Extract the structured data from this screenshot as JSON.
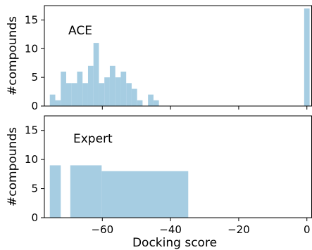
{
  "chart_data": [
    {
      "type": "bar",
      "panel_label": "ACE",
      "ylabel": "#compounds",
      "xlabel": "",
      "bin_width": 1.6,
      "xlim": [
        -77,
        1.5
      ],
      "ylim": [
        0,
        17.5
      ],
      "yticks": [
        0,
        5,
        10,
        15
      ],
      "xticks": [
        -60,
        -40,
        -20,
        0
      ],
      "bar_color": "#a6cde2",
      "bars": [
        {
          "x": -75.4,
          "y": 2
        },
        {
          "x": -73.8,
          "y": 1
        },
        {
          "x": -72.2,
          "y": 6
        },
        {
          "x": -70.6,
          "y": 4
        },
        {
          "x": -69.0,
          "y": 4
        },
        {
          "x": -67.4,
          "y": 6
        },
        {
          "x": -65.8,
          "y": 4
        },
        {
          "x": -64.2,
          "y": 7
        },
        {
          "x": -62.6,
          "y": 11
        },
        {
          "x": -61.0,
          "y": 4
        },
        {
          "x": -59.4,
          "y": 5
        },
        {
          "x": -57.8,
          "y": 7
        },
        {
          "x": -56.2,
          "y": 5
        },
        {
          "x": -54.6,
          "y": 6
        },
        {
          "x": -53.0,
          "y": 4
        },
        {
          "x": -51.4,
          "y": 3
        },
        {
          "x": -49.8,
          "y": 1
        },
        {
          "x": -46.6,
          "y": 2
        },
        {
          "x": -45.0,
          "y": 1
        },
        {
          "x": -0.8,
          "y": 17
        }
      ]
    },
    {
      "type": "bar",
      "panel_label": "Expert",
      "ylabel": "#compounds",
      "xlabel": "Docking score",
      "xlim": [
        -77,
        1.5
      ],
      "ylim": [
        0,
        17.5
      ],
      "yticks": [
        0,
        5,
        10,
        15
      ],
      "xticks": [
        -60,
        -40,
        -20,
        0
      ],
      "xtick_labels": [
        "−60",
        "−40",
        "−20",
        "0"
      ],
      "bar_color": "#a6cde2",
      "bars": [
        {
          "x0": -75.4,
          "x1": -72.2,
          "y": 9
        },
        {
          "x0": -69.4,
          "x1": -60.2,
          "y": 9
        },
        {
          "x0": -60.2,
          "x1": -34.8,
          "y": 8
        }
      ]
    }
  ]
}
